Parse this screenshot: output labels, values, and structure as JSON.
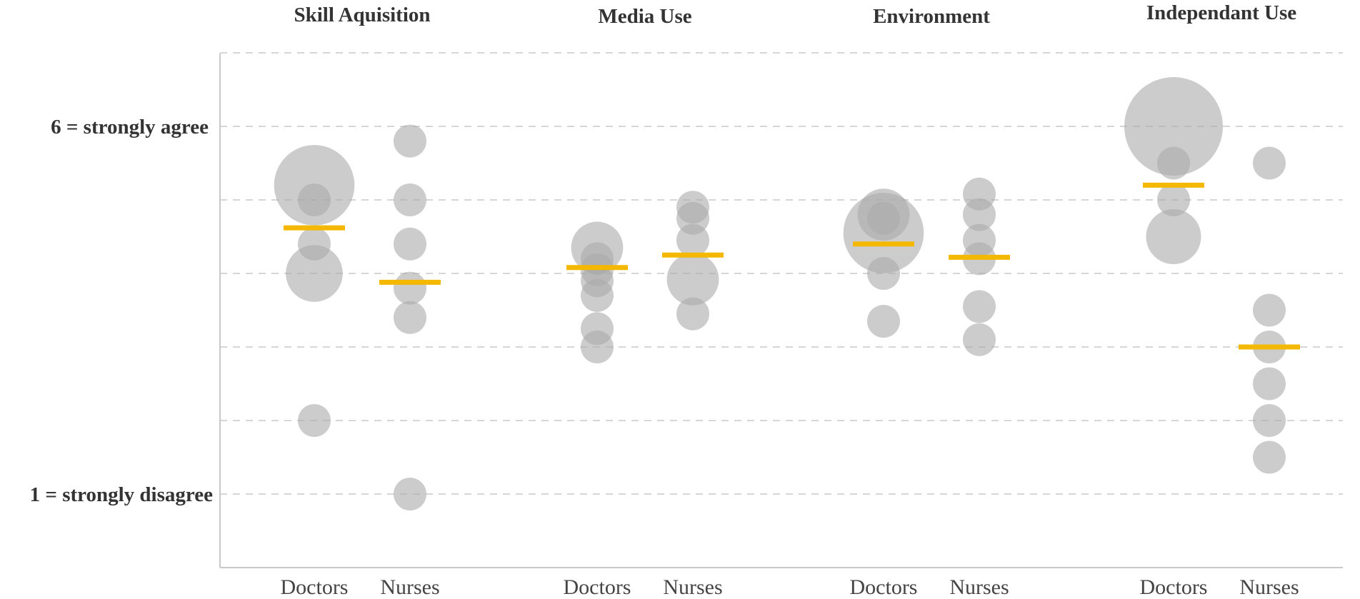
{
  "chart_data": {
    "type": "scatter",
    "subtype": "bubble-strip",
    "y_axis": {
      "range": [
        0,
        7
      ],
      "top_label": "6 = strongly agree",
      "bottom_label": "1 = strongly disagree",
      "top_value": 6,
      "bottom_value": 1,
      "gridlines": [
        1,
        2,
        3,
        4,
        5,
        6,
        7
      ]
    },
    "groups": [
      "Doctors",
      "Nurses"
    ],
    "mean_color": "#F5B800",
    "bubble_color": "#AAAAAA",
    "categories": [
      {
        "title": "Skill Aquisition",
        "series": [
          {
            "group": "Doctors",
            "mean": 4.62,
            "points": [
              {
                "y": 5.2,
                "n": 6
              },
              {
                "y": 5.0,
                "n": 1
              },
              {
                "y": 4.4,
                "n": 1
              },
              {
                "y": 4.0,
                "n": 3
              },
              {
                "y": 2.0,
                "n": 1
              }
            ]
          },
          {
            "group": "Nurses",
            "mean": 3.88,
            "points": [
              {
                "y": 5.8,
                "n": 1
              },
              {
                "y": 5.0,
                "n": 1
              },
              {
                "y": 4.4,
                "n": 1
              },
              {
                "y": 3.8,
                "n": 1
              },
              {
                "y": 3.4,
                "n": 1
              },
              {
                "y": 1.0,
                "n": 1
              }
            ]
          }
        ]
      },
      {
        "title": "Media Use",
        "series": [
          {
            "group": "Doctors",
            "mean": 4.08,
            "points": [
              {
                "y": 4.35,
                "n": 2.5
              },
              {
                "y": 4.2,
                "n": 1
              },
              {
                "y": 4.05,
                "n": 1
              },
              {
                "y": 3.9,
                "n": 1
              },
              {
                "y": 3.7,
                "n": 1
              },
              {
                "y": 3.25,
                "n": 1
              },
              {
                "y": 3.0,
                "n": 1
              }
            ]
          },
          {
            "group": "Nurses",
            "mean": 4.25,
            "points": [
              {
                "y": 4.9,
                "n": 1
              },
              {
                "y": 4.75,
                "n": 1
              },
              {
                "y": 4.45,
                "n": 1
              },
              {
                "y": 3.92,
                "n": 2.5
              },
              {
                "y": 3.45,
                "n": 1
              }
            ]
          }
        ]
      },
      {
        "title": "Environment",
        "series": [
          {
            "group": "Doctors",
            "mean": 4.4,
            "points": [
              {
                "y": 4.55,
                "n": 6
              },
              {
                "y": 4.8,
                "n": 2.5
              },
              {
                "y": 4.75,
                "n": 1
              },
              {
                "y": 4.0,
                "n": 1
              },
              {
                "y": 3.35,
                "n": 1
              }
            ]
          },
          {
            "group": "Nurses",
            "mean": 4.22,
            "points": [
              {
                "y": 5.08,
                "n": 1
              },
              {
                "y": 4.8,
                "n": 1
              },
              {
                "y": 4.45,
                "n": 1
              },
              {
                "y": 4.2,
                "n": 1
              },
              {
                "y": 3.55,
                "n": 1
              },
              {
                "y": 3.1,
                "n": 1
              }
            ]
          }
        ]
      },
      {
        "title": "Independant Use",
        "series": [
          {
            "group": "Doctors",
            "mean": 5.2,
            "points": [
              {
                "y": 6.0,
                "n": 9
              },
              {
                "y": 5.5,
                "n": 1
              },
              {
                "y": 5.0,
                "n": 1
              },
              {
                "y": 4.5,
                "n": 2.8
              }
            ]
          },
          {
            "group": "Nurses",
            "mean": 3.0,
            "points": [
              {
                "y": 5.5,
                "n": 1
              },
              {
                "y": 3.5,
                "n": 1
              },
              {
                "y": 3.0,
                "n": 1
              },
              {
                "y": 2.5,
                "n": 1
              },
              {
                "y": 2.0,
                "n": 1
              },
              {
                "y": 1.5,
                "n": 1
              }
            ]
          }
        ]
      }
    ]
  }
}
